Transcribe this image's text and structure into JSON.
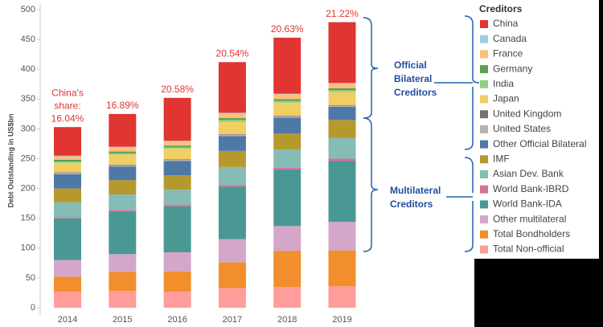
{
  "chart_data": {
    "type": "stacked_bar",
    "y_label": "Debt Outstanding in US$bn",
    "categories": [
      "2014",
      "2015",
      "2016",
      "2017",
      "2018",
      "2019"
    ],
    "ylim": [
      0,
      500
    ],
    "yticks": [
      0,
      50,
      100,
      150,
      200,
      250,
      300,
      350,
      400,
      450,
      500
    ],
    "legend_title": "Creditors",
    "series": [
      {
        "name": "China",
        "color": "#e03531",
        "values": [
          48,
          55,
          72,
          85,
          94,
          102
        ]
      },
      {
        "name": "Canada",
        "color": "#a0cbe8",
        "values": [
          1,
          1,
          1,
          1,
          1,
          1
        ]
      },
      {
        "name": "France",
        "color": "#ffbe7d",
        "values": [
          6,
          7,
          7,
          8,
          8,
          8
        ]
      },
      {
        "name": "Germany",
        "color": "#59a14f",
        "values": [
          3,
          3,
          3,
          3,
          3,
          3
        ]
      },
      {
        "name": "India",
        "color": "#8cd17d",
        "values": [
          2,
          2,
          2,
          3,
          3,
          3
        ]
      },
      {
        "name": "Japan",
        "color": "#f1ce63",
        "values": [
          16,
          17,
          18,
          21,
          22,
          22
        ]
      },
      {
        "name": "United Kingdom",
        "color": "#79706e",
        "values": [
          1,
          1,
          1,
          1,
          1,
          1
        ]
      },
      {
        "name": "United States",
        "color": "#bab0ac",
        "values": [
          2,
          2,
          2,
          2,
          2,
          2
        ]
      },
      {
        "name": "Other Official Bilateral",
        "color": "#4e79a7",
        "values": [
          24,
          23,
          24,
          25,
          27,
          22
        ]
      },
      {
        "name": "IMF",
        "color": "#b6992d",
        "values": [
          23,
          24,
          24,
          27,
          27,
          30
        ]
      },
      {
        "name": "Asian Dev. Bank",
        "color": "#86bcb6",
        "values": [
          25,
          26,
          25,
          30,
          30,
          35
        ]
      },
      {
        "name": "World Bank-IBRD",
        "color": "#d37295",
        "values": [
          2,
          2,
          3,
          3,
          3,
          4
        ]
      },
      {
        "name": "World Bank-IDA",
        "color": "#499894",
        "values": [
          70,
          72,
          77,
          88,
          95,
          102
        ]
      },
      {
        "name": "Other multilateral",
        "color": "#d4a6c8",
        "values": [
          28,
          30,
          32,
          39,
          42,
          48
        ]
      },
      {
        "name": "Total Bondholders",
        "color": "#f28e2b",
        "values": [
          25,
          32,
          34,
          43,
          60,
          60
        ]
      },
      {
        "name": "Total Non-official",
        "color": "#ff9d9a",
        "values": [
          27,
          28,
          27,
          33,
          35,
          36
        ]
      }
    ],
    "china_share": {
      "label": [
        "China's",
        "share:"
      ],
      "values": [
        16.04,
        16.89,
        20.58,
        20.54,
        20.63,
        21.22
      ],
      "value_labels": [
        "16.04%",
        "16.89%",
        "20.58%",
        "20.54%",
        "20.63%",
        "21.22%"
      ]
    },
    "official_bilateral_label": [
      "Official",
      "Bilateral",
      "Creditors"
    ],
    "multilateral_label": [
      "Multilateral",
      "Creditors"
    ]
  }
}
